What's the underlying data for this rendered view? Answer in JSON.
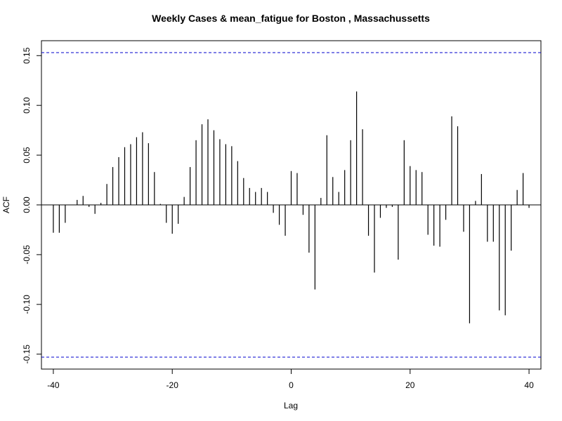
{
  "chart_data": {
    "type": "bar",
    "title": "Weekly Cases & mean_fatigue for Boston , Massachussetts",
    "xlabel": "Lag",
    "ylabel": "ACF",
    "xlim": [
      -42,
      42
    ],
    "ylim": [
      -0.165,
      0.165
    ],
    "x_ticks": [
      -40,
      -20,
      0,
      20,
      40
    ],
    "x_tick_labels": [
      "-40",
      "-20",
      "0",
      "20",
      "40"
    ],
    "y_ticks": [
      -0.15,
      -0.1,
      -0.05,
      0.0,
      0.05,
      0.1,
      0.15
    ],
    "y_tick_labels": [
      "-0.15",
      "-0.10",
      "-0.05",
      "0.00",
      "0.05",
      "0.10",
      "0.15"
    ],
    "confidence_limit": 0.153,
    "confidence_color": "#0000cc",
    "bar_color": "#000000",
    "grid": false,
    "x": [
      -40,
      -39,
      -38,
      -37,
      -36,
      -35,
      -34,
      -33,
      -32,
      -31,
      -30,
      -29,
      -28,
      -27,
      -26,
      -25,
      -24,
      -23,
      -22,
      -21,
      -20,
      -19,
      -18,
      -17,
      -16,
      -15,
      -14,
      -13,
      -12,
      -11,
      -10,
      -9,
      -8,
      -7,
      -6,
      -5,
      -4,
      -3,
      -2,
      -1,
      0,
      1,
      2,
      3,
      4,
      5,
      6,
      7,
      8,
      9,
      10,
      11,
      12,
      13,
      14,
      15,
      16,
      17,
      18,
      19,
      20,
      21,
      22,
      23,
      24,
      25,
      26,
      27,
      28,
      29,
      30,
      31,
      32,
      33,
      34,
      35,
      36,
      37,
      38,
      39,
      40
    ],
    "values": [
      -0.028,
      -0.028,
      -0.018,
      0,
      0.005,
      0.009,
      -0.002,
      -0.009,
      0.002,
      0.021,
      0.038,
      0.048,
      0.058,
      0.061,
      0.068,
      0.073,
      0.062,
      0.033,
      0.001,
      -0.018,
      -0.029,
      -0.019,
      0.008,
      0.038,
      0.065,
      0.081,
      0.086,
      0.075,
      0.066,
      0.061,
      0.059,
      0.044,
      0.027,
      0.017,
      0.013,
      0.017,
      0.013,
      -0.008,
      -0.02,
      -0.031,
      0.034,
      0.032,
      -0.01,
      -0.048,
      -0.085,
      0.007,
      0.07,
      0.028,
      0.013,
      0.035,
      0.065,
      0.114,
      0.076,
      -0.031,
      -0.068,
      -0.013,
      -0.003,
      -0.002,
      -0.055,
      0.065,
      0.039,
      0.035,
      0.033,
      -0.03,
      -0.041,
      -0.042,
      -0.015,
      0.089,
      0.079,
      -0.027,
      -0.119,
      0.004,
      0.031,
      -0.037,
      -0.037,
      -0.106,
      -0.111,
      -0.046,
      0.015,
      0.032,
      -0.003
    ]
  }
}
